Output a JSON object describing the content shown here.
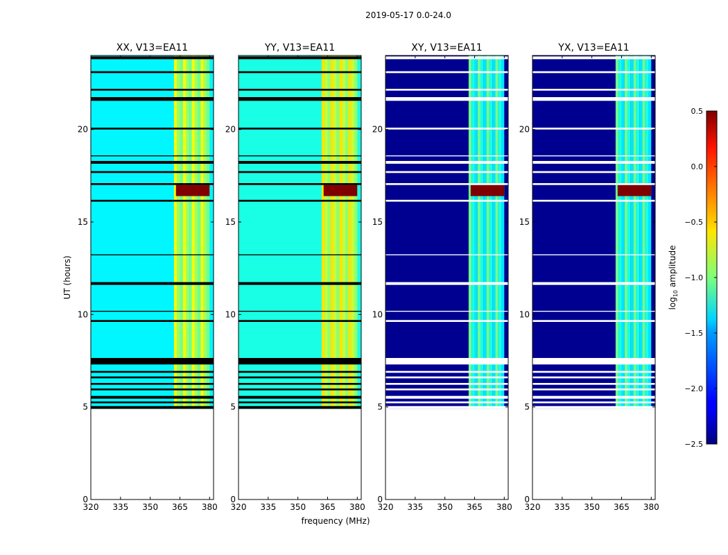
{
  "chart_data": {
    "type": "heatmap",
    "title": "2019-05-17 0.0-24.0",
    "xlabel": "frequency (MHz)",
    "ylabel": "UT (hours)",
    "xlim": [
      320,
      382
    ],
    "ylim": [
      0,
      24
    ],
    "xticks": [
      "320",
      "335",
      "350",
      "365",
      "380"
    ],
    "xtick_values": [
      320,
      335,
      350,
      365,
      380
    ],
    "yticks": [
      "0",
      "5",
      "10",
      "15",
      "20"
    ],
    "ytick_values": [
      0,
      5,
      10,
      15,
      20
    ],
    "data_start_hour": 4.9,
    "data_end_hour": 24.0,
    "colorbar": {
      "label": "log10 amplitude",
      "label_main": "log",
      "label_sub": "10",
      "label_tail": " amplitude",
      "range": [
        -2.5,
        0.5
      ],
      "ticks": [
        "0.5",
        "0.0",
        "−0.5",
        "−1.0",
        "−1.5",
        "−2.0",
        "−2.5"
      ],
      "tick_values": [
        0.5,
        0.0,
        -0.5,
        -1.0,
        -1.5,
        -2.0,
        -2.5
      ]
    },
    "flagged_bands_hours": [
      [
        4.9,
        5.05
      ],
      [
        5.2,
        5.3
      ],
      [
        5.45,
        5.6
      ],
      [
        5.9,
        6.0
      ],
      [
        6.2,
        6.3
      ],
      [
        6.55,
        6.65
      ],
      [
        6.85,
        6.95
      ],
      [
        7.3,
        7.65
      ],
      [
        9.6,
        9.7
      ],
      [
        10.15,
        10.2
      ],
      [
        11.6,
        11.75
      ],
      [
        13.2,
        13.25
      ],
      [
        16.1,
        16.2
      ],
      [
        17.0,
        17.1
      ],
      [
        17.65,
        17.75
      ],
      [
        18.15,
        18.3
      ],
      [
        18.55,
        18.6
      ],
      [
        20.0,
        20.1
      ],
      [
        21.55,
        21.75
      ],
      [
        22.1,
        22.2
      ],
      [
        23.05,
        23.15
      ],
      [
        23.8,
        23.95
      ]
    ],
    "rfi_band_mhz": [
      362,
      380
    ],
    "rfi_burst": {
      "hours": [
        16.4,
        17.0
      ],
      "mhz": [
        363,
        380
      ],
      "log10_amplitude": 0.5
    },
    "series": [
      {
        "name": "XX",
        "panel_title": "XX, V13=EA11",
        "baseline_log10_amp": -1.4,
        "rfi_band_log10_amp": -0.9
      },
      {
        "name": "YY",
        "panel_title": "YY, V13=EA11",
        "baseline_log10_amp": -1.3,
        "rfi_band_log10_amp": -0.8
      },
      {
        "name": "XY",
        "panel_title": "XY, V13=EA11",
        "baseline_log10_amp": -2.45,
        "rfi_band_log10_amp": -1.3
      },
      {
        "name": "YX",
        "panel_title": "YX, V13=EA11",
        "baseline_log10_amp": -2.45,
        "rfi_band_log10_amp": -1.3
      }
    ]
  }
}
